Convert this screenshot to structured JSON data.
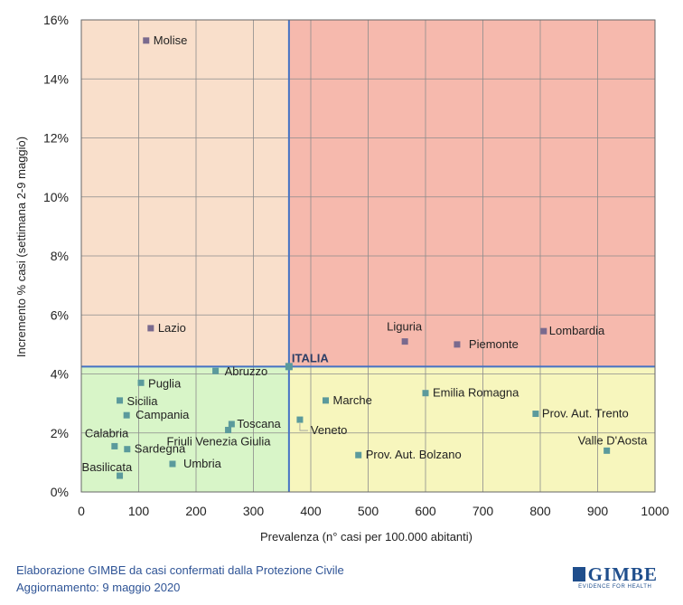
{
  "chart_data": {
    "type": "scatter",
    "xlabel": "Prevalenza  (n° casi per 100.000 abitanti)",
    "ylabel": "Incremento %  casi (settimana 2-9 maggio)",
    "xlim": [
      0,
      1000
    ],
    "ylim": [
      0,
      16
    ],
    "x_ticks": [
      "0",
      "100",
      "200",
      "300",
      "400",
      "500",
      "600",
      "700",
      "800",
      "900",
      "1000"
    ],
    "y_ticks": [
      "0%",
      "2%",
      "4%",
      "6%",
      "8%",
      "10%",
      "12%",
      "14%",
      "16%"
    ],
    "grid": true,
    "reference": {
      "label": "ITALIA",
      "x": 362,
      "y": 4.25
    },
    "quadrant_colors": {
      "top_left": "#f9dfcb",
      "top_right": "#f6b9ad",
      "bottom_left": "#d8f5c8",
      "bottom_right": "#f7f6bd"
    },
    "point_colors": {
      "above": "#7a6a8e",
      "below": "#5b9a9c"
    },
    "points": [
      {
        "label": "Molise",
        "x": 113,
        "y": 15.3
      },
      {
        "label": "Lazio",
        "x": 121,
        "y": 5.55
      },
      {
        "label": "Liguria",
        "x": 564,
        "y": 5.1
      },
      {
        "label": "Piemonte",
        "x": 655,
        "y": 5.0
      },
      {
        "label": "Lombardia",
        "x": 806,
        "y": 5.45
      },
      {
        "label": "Abruzzo",
        "x": 234,
        "y": 4.1
      },
      {
        "label": "Puglia",
        "x": 104,
        "y": 3.7
      },
      {
        "label": "Sicilia",
        "x": 67,
        "y": 3.1
      },
      {
        "label": "Campania",
        "x": 79,
        "y": 2.6
      },
      {
        "label": "Calabria",
        "x": 58,
        "y": 1.55
      },
      {
        "label": "Sardegna",
        "x": 80,
        "y": 1.45
      },
      {
        "label": "Basilicata",
        "x": 67,
        "y": 0.55
      },
      {
        "label": "Umbria",
        "x": 159,
        "y": 0.95
      },
      {
        "label": "Toscana",
        "x": 262,
        "y": 2.3
      },
      {
        "label": "Friuli Venezia Giulia",
        "x": 256,
        "y": 2.1
      },
      {
        "label": "Marche",
        "x": 426,
        "y": 3.1
      },
      {
        "label": "Veneto",
        "x": 381,
        "y": 2.45
      },
      {
        "label": "Emilia Romagna",
        "x": 600,
        "y": 3.35
      },
      {
        "label": "Prov. Aut. Bolzano",
        "x": 483,
        "y": 1.25
      },
      {
        "label": "Prov. Aut. Trento",
        "x": 792,
        "y": 2.65
      },
      {
        "label": "Valle D'Aosta",
        "x": 916,
        "y": 1.4
      }
    ]
  },
  "footer": {
    "line1": "Elaborazione GIMBE da casi confermati dalla Protezione Civile",
    "line2": "Aggiornamento: 9 maggio 2020"
  },
  "logo": {
    "name": "GIMBE",
    "tagline": "EVIDENCE FOR HEALTH"
  }
}
